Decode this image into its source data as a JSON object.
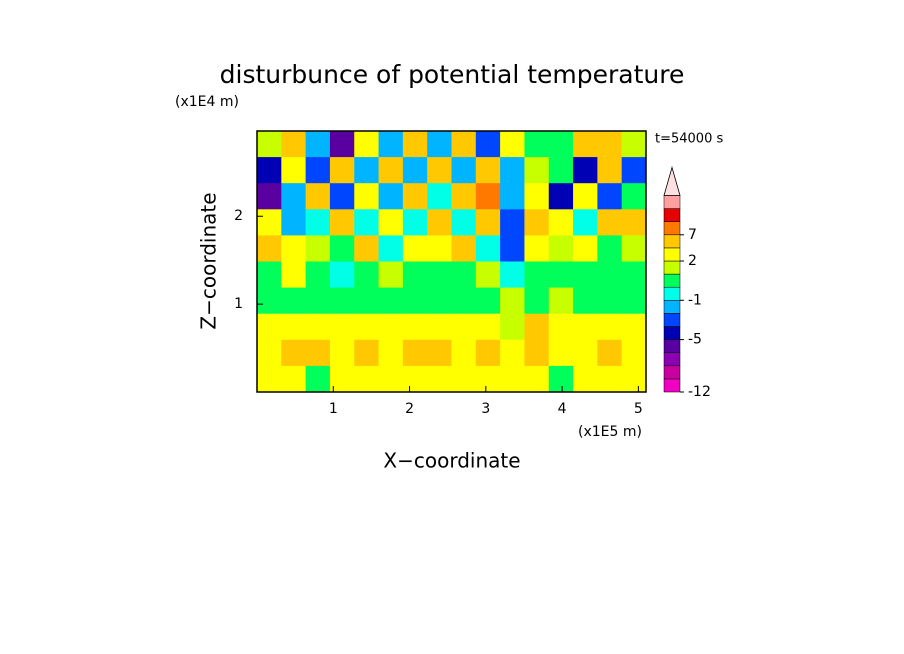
{
  "chart_data": {
    "type": "contour",
    "title": "disturbunce of potential temperature",
    "y_unit": "(x1E4 m)",
    "x_unit": "(x1E5 m)",
    "x_label": "X−coordinate",
    "y_label": "Z−coordinate",
    "annotation": "t=54000 s",
    "xlim": [
      0,
      5.1
    ],
    "ylim": [
      0,
      2.97
    ],
    "xticks": [
      1,
      2,
      3,
      4,
      5
    ],
    "yticks": [
      1,
      2
    ],
    "levels": [
      -12,
      -10,
      -8,
      -7,
      -5,
      -4,
      -3,
      -1,
      0,
      1,
      2,
      4,
      7,
      9,
      11,
      13
    ],
    "colors": [
      "#f000c0",
      "#c800a0",
      "#8c00b4",
      "#5a00a0",
      "#0000b4",
      "#0046ff",
      "#00b4ff",
      "#00ffe6",
      "#00ff5a",
      "#c8ff00",
      "#ffff00",
      "#ffc800",
      "#ff7800",
      "#e60000",
      "#ffa0a0"
    ],
    "over_color": "#ffe0e0",
    "colorbar_ticks": [
      -12,
      -5,
      -1,
      2,
      7
    ],
    "z": [
      [
        1,
        5,
        -2,
        -6,
        3,
        -3,
        5,
        -2,
        4,
        -4,
        3,
        0.5,
        0.5,
        5,
        4,
        1
      ],
      [
        -5,
        3,
        -4,
        5,
        -3,
        4,
        -2,
        6,
        -3,
        5,
        -2,
        1,
        0.5,
        -5,
        4,
        -4
      ],
      [
        -6,
        -3,
        4,
        -4,
        3,
        -2,
        5,
        -1,
        5,
        7,
        -3,
        2,
        -5,
        3,
        -4,
        0.5
      ],
      [
        3,
        -2,
        -1,
        4,
        -1,
        3,
        -1,
        4,
        -1,
        6,
        -4,
        5,
        3,
        -1,
        4,
        5
      ],
      [
        4,
        3,
        1,
        0.5,
        4,
        -1,
        3,
        2,
        4,
        -1,
        -4,
        3,
        1,
        2,
        0.5,
        1
      ],
      [
        0.5,
        2,
        0.5,
        -1,
        0.5,
        1,
        0.5,
        0,
        0.5,
        1,
        -1,
        0.5,
        0,
        0.5,
        0.5,
        0.5
      ],
      [
        0.5,
        0.5,
        0.5,
        0.5,
        0.5,
        0.5,
        0.5,
        0.5,
        0.5,
        0.5,
        1,
        0.5,
        1,
        0.5,
        0.5,
        0.5
      ],
      [
        2,
        3,
        3,
        3,
        2,
        2,
        3,
        2,
        2,
        3,
        1,
        4,
        2,
        2,
        3,
        2
      ],
      [
        3,
        4,
        4,
        3,
        4,
        3,
        4,
        4,
        3,
        4,
        3,
        4,
        3,
        3,
        4,
        3
      ],
      [
        2,
        2,
        0.5,
        2,
        2,
        2,
        2,
        2,
        2,
        2,
        2,
        2,
        0.5,
        2,
        3,
        2
      ]
    ]
  }
}
